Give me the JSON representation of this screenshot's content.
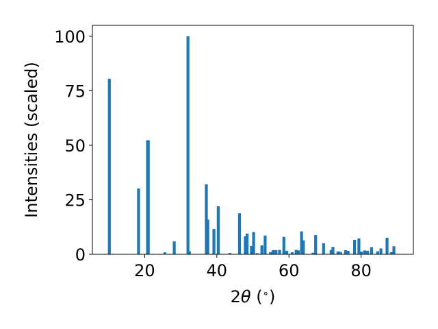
{
  "chart_data": {
    "type": "bar",
    "xlabel_main": "2",
    "xlabel_theta": "θ",
    "xlabel_unit": " (",
    "xlabel_degree": "∘",
    "xlabel_close": ")",
    "ylabel": "Intensities (scaled)",
    "xlim": [
      5.5,
      94.5
    ],
    "ylim": [
      0,
      105
    ],
    "xticks": [
      20,
      40,
      60,
      80
    ],
    "yticks": [
      0,
      25,
      50,
      75,
      100
    ],
    "grid": false,
    "bar_color": "#1f77b4",
    "bar_width": 0.8,
    "x": [
      10.2,
      18.3,
      20.8,
      21.0,
      25.6,
      28.2,
      32.0,
      32.4,
      37.1,
      37.5,
      39.2,
      40.4,
      43.6,
      46.3,
      47.9,
      48.4,
      49.6,
      50.2,
      51.2,
      52.5,
      53.4,
      54.9,
      55.6,
      56.4,
      57.4,
      58.6,
      59.4,
      60.9,
      62.0,
      62.6,
      63.5,
      64.0,
      66.7,
      67.4,
      69.6,
      71.7,
      72.2,
      73.6,
      74.3,
      75.7,
      76.4,
      78.2,
      79.4,
      80.1,
      81.0,
      81.8,
      82.9,
      84.6,
      85.5,
      87.2,
      88.4,
      89.1
    ],
    "values": [
      80.5,
      30.2,
      52.3,
      52.3,
      0.9,
      5.9,
      100.0,
      1.4,
      32.1,
      15.9,
      11.6,
      22.0,
      0.6,
      18.8,
      8.3,
      9.5,
      3.8,
      10.2,
      0.5,
      4.1,
      8.6,
      1.0,
      1.9,
      1.9,
      2.0,
      8.0,
      1.6,
      0.9,
      2.0,
      1.8,
      10.5,
      6.4,
      0.7,
      8.8,
      5.1,
      2.0,
      3.4,
      1.3,
      1.1,
      1.9,
      1.6,
      6.6,
      7.3,
      1.2,
      1.8,
      1.6,
      3.3,
      1.4,
      2.7,
      7.6,
      1.0,
      3.7
    ]
  }
}
